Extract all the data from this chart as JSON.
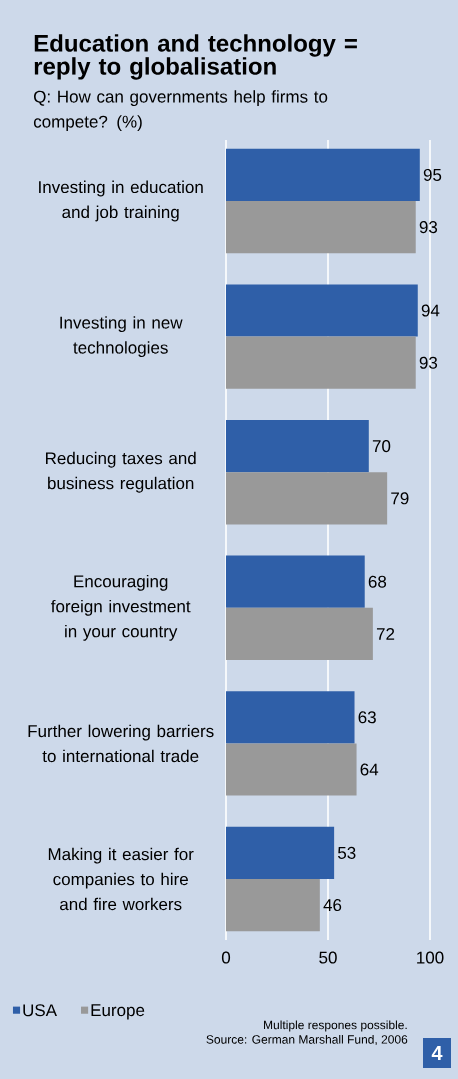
{
  "chart_data": {
    "type": "bar",
    "orientation": "horizontal",
    "title": "Education and technology = reply to globalisation",
    "subtitle": "Q: How can governments help firms to compete? (%)",
    "categories": [
      "Investing in education and job training",
      "Investing in new technologies",
      "Reducing taxes and business regulation",
      "Encouraging foreign investment in your country",
      "Further lowering barriers to international trade",
      "Making it easier for companies to hire and fire workers"
    ],
    "series": [
      {
        "name": "USA",
        "color": "#2f5fa8",
        "values": [
          95,
          94,
          70,
          68,
          63,
          53
        ]
      },
      {
        "name": "Europe",
        "color": "#999999",
        "values": [
          93,
          93,
          79,
          72,
          64,
          46
        ]
      }
    ],
    "xlim": [
      0,
      100
    ],
    "xticks": [
      0,
      50,
      100
    ],
    "grid": "x",
    "legend": "bottom left",
    "data_labels": true,
    "annotations": [
      "Multiple respones possible.",
      "Source: German Marshall Fund, 2006",
      "4"
    ]
  }
}
